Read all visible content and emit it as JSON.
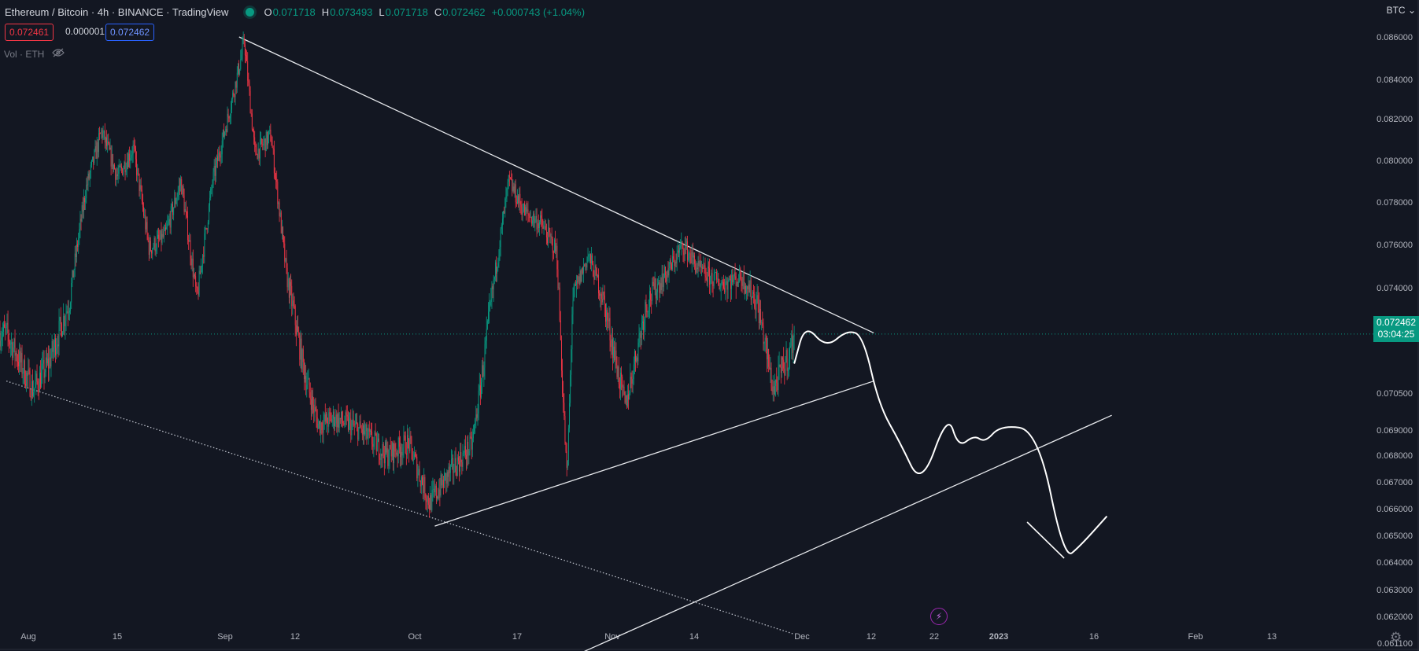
{
  "header": {
    "title": "Ethereum / Bitcoin · 4h · BINANCE · TradingView",
    "ohlc": [
      {
        "label": "O",
        "value": "0.071718"
      },
      {
        "label": "H",
        "value": "0.073493"
      },
      {
        "label": "L",
        "value": "0.071718"
      },
      {
        "label": "C",
        "value": "0.072462"
      }
    ],
    "change": "+0.000743 (+1.04%)"
  },
  "price_boxes": {
    "sell": "0.072461",
    "spread": "0.000001",
    "buy": "0.072462"
  },
  "volume_label": "Vol · ETH",
  "currency_menu": "BTC",
  "last_price": {
    "price": "0.072462",
    "countdown": "03:04:25"
  },
  "icons": [
    "eye-off-icon",
    "gear-icon",
    "lightning-icon",
    "chevron-down-icon"
  ],
  "colors": {
    "up": "#089981",
    "down": "#f23645",
    "background": "#131722",
    "drawing": "#ffffff"
  },
  "chart_data": {
    "type": "candlestick",
    "symbol": "ETHBTC",
    "interval": "4h",
    "x_ticks": [
      "Aug",
      "15",
      "Sep",
      "12",
      "Oct",
      "17",
      "Nov",
      "14",
      "Dec",
      "12",
      "22",
      "2023",
      "16",
      "Feb",
      "13"
    ],
    "y_ticks": [
      "0.086000",
      "0.084000",
      "0.082000",
      "0.080000",
      "0.078000",
      "0.076000",
      "0.074000",
      "0.070500",
      "0.069000",
      "0.068000",
      "0.067000",
      "0.066000",
      "0.065000",
      "0.064000",
      "0.063000",
      "0.062000",
      "0.061100"
    ],
    "price_path": [
      [
        "2022-07-26",
        0.0725
      ],
      [
        "2022-07-31",
        0.0706
      ],
      [
        "2022-08-03",
        0.0715
      ],
      [
        "2022-08-07",
        0.0736
      ],
      [
        "2022-08-10",
        0.0786
      ],
      [
        "2022-08-13",
        0.0814
      ],
      [
        "2022-08-16",
        0.0792
      ],
      [
        "2022-08-19",
        0.0806
      ],
      [
        "2022-08-22",
        0.0758
      ],
      [
        "2022-08-25",
        0.0764
      ],
      [
        "2022-08-28",
        0.079
      ],
      [
        "2022-08-31",
        0.0735
      ],
      [
        "2022-09-03",
        0.079
      ],
      [
        "2022-09-06",
        0.0822
      ],
      [
        "2022-09-09",
        0.0858
      ],
      [
        "2022-09-11",
        0.0803
      ],
      [
        "2022-09-14",
        0.0812
      ],
      [
        "2022-09-17",
        0.0745
      ],
      [
        "2022-09-20",
        0.0715
      ],
      [
        "2022-09-23",
        0.0692
      ],
      [
        "2022-09-26",
        0.0695
      ],
      [
        "2022-10-01",
        0.069
      ],
      [
        "2022-10-06",
        0.068
      ],
      [
        "2022-10-10",
        0.0685
      ],
      [
        "2022-10-14",
        0.0662
      ],
      [
        "2022-10-18",
        0.0674
      ],
      [
        "2022-10-22",
        0.0684
      ],
      [
        "2022-10-26",
        0.074
      ],
      [
        "2022-10-29",
        0.079
      ],
      [
        "2022-11-01",
        0.0775
      ],
      [
        "2022-11-04",
        0.077
      ],
      [
        "2022-11-07",
        0.0757
      ],
      [
        "2022-11-09",
        0.067
      ],
      [
        "2022-11-10",
        0.0735
      ],
      [
        "2022-11-13",
        0.0755
      ],
      [
        "2022-11-16",
        0.0735
      ],
      [
        "2022-11-20",
        0.07
      ],
      [
        "2022-11-24",
        0.0735
      ],
      [
        "2022-11-28",
        0.0747
      ],
      [
        "2022-12-01",
        0.076
      ],
      [
        "2022-12-04",
        0.0748
      ],
      [
        "2022-12-08",
        0.0742
      ],
      [
        "2022-12-12",
        0.0745
      ],
      [
        "2022-12-15",
        0.0735
      ],
      [
        "2022-12-18",
        0.0706
      ],
      [
        "2022-12-21",
        0.0718
      ],
      [
        "2022-12-22",
        0.072462
      ]
    ],
    "trendlines": [
      {
        "name": "upper-descending",
        "from": [
          "2022-09-08",
          0.086
        ],
        "to": [
          "2023-01-06",
          0.0725
        ]
      },
      {
        "name": "lower-ascending",
        "from": [
          "2022-10-15",
          0.06535
        ],
        "to": [
          "2023-01-06",
          0.0709
        ]
      },
      {
        "name": "lower-channel-dotted",
        "from": [
          "2022-07-26",
          0.0709
        ],
        "to": [
          "2022-12-22",
          0.0614
        ]
      },
      {
        "name": "long-ascending",
        "from": [
          "2022-11-12",
          0.0608
        ],
        "to": [
          "2023-02-20",
          0.0696
        ]
      }
    ],
    "projection_path": [
      [
        "2022-12-22",
        0.0715
      ],
      [
        "2022-12-24",
        0.0728
      ],
      [
        "2022-12-28",
        0.072
      ],
      [
        "2023-01-01",
        0.0726
      ],
      [
        "2023-01-04",
        0.0724
      ],
      [
        "2023-01-07",
        0.07
      ],
      [
        "2023-01-11",
        0.0685
      ],
      [
        "2023-01-15",
        0.0668
      ],
      [
        "2023-01-20",
        0.0697
      ],
      [
        "2023-01-22",
        0.0683
      ],
      [
        "2023-01-25",
        0.0688
      ],
      [
        "2023-01-27",
        0.0685
      ],
      [
        "2023-01-30",
        0.0692
      ],
      [
        "2023-02-06",
        0.069
      ],
      [
        "2023-02-11",
        0.0641
      ],
      [
        "2023-02-14",
        0.0646
      ],
      [
        "2023-02-19",
        0.0657
      ]
    ],
    "last_price": 0.072462,
    "grid": false
  }
}
